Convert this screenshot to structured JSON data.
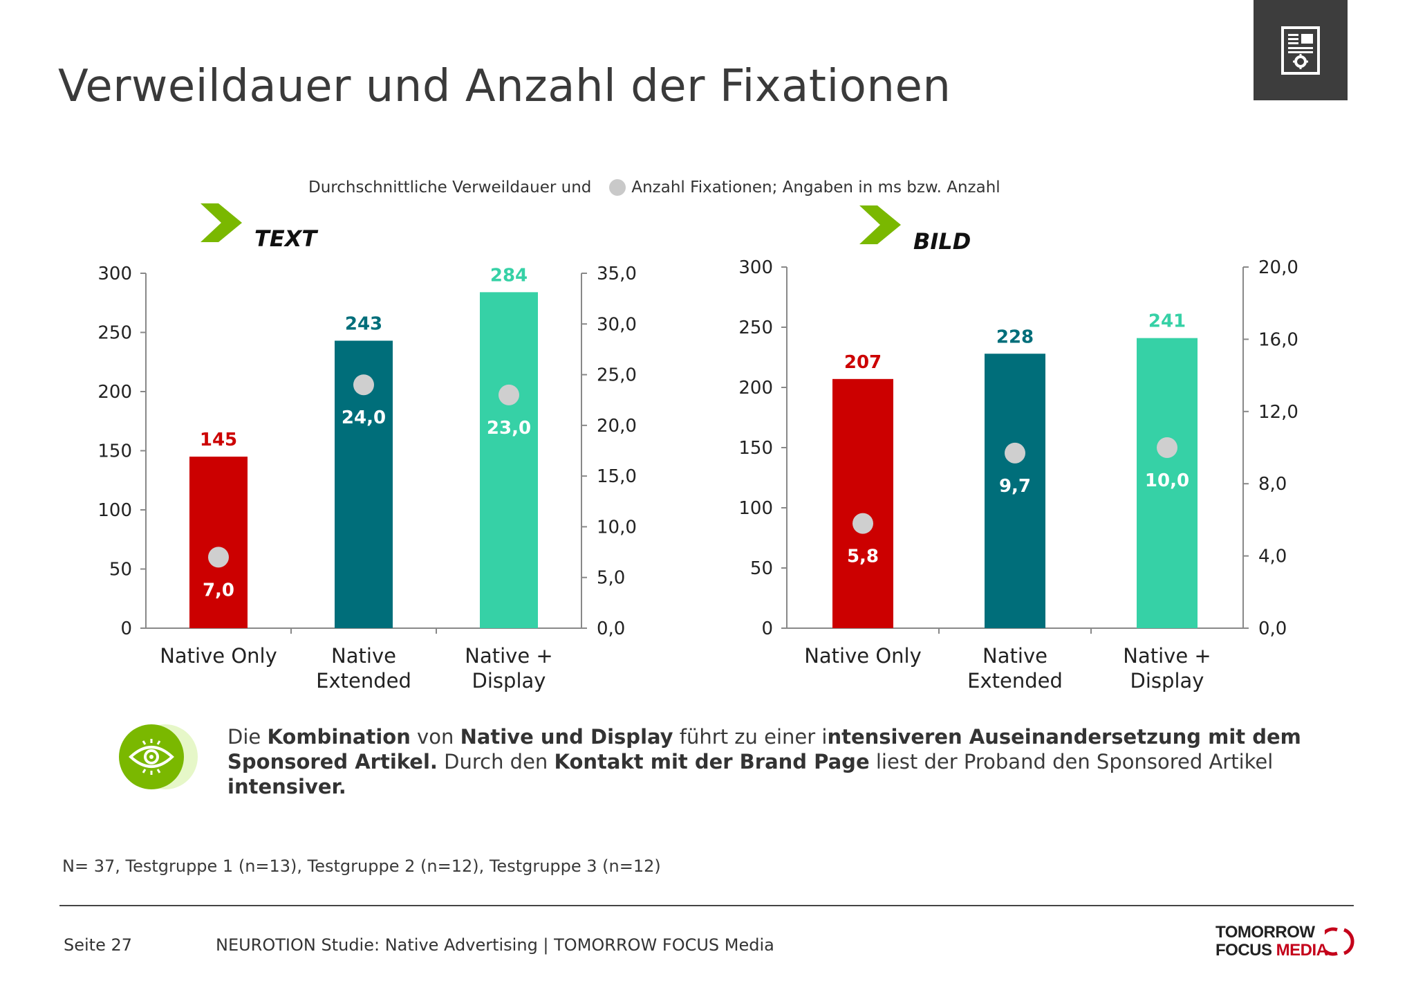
{
  "title": "Verweildauer und Anzahl der Fixationen",
  "subtitle": {
    "part1": "Durchschnittliche Verweildauer und",
    "part2": "Anzahl Fixationen; Angaben in ms bzw. Anzahl"
  },
  "callout": {
    "t1": "Die ",
    "b1": "Kombination",
    "t2": " von ",
    "b2": "Native und Display",
    "t3": " führt zu einer i",
    "b3": "ntensiveren Auseinandersetzung mit dem Sponsored Artikel.",
    "t4": " Durch den ",
    "b4": "Kontakt mit der Brand Page",
    "t5": " liest der Proband den Sponsored Artikel ",
    "b5": "intensiver."
  },
  "note": "N= 37, Testgruppe 1 (n=13), Testgruppe 2 (n=12), Testgruppe 3 (n=12)",
  "footer": {
    "page": "Seite 27",
    "text": "NEUROTION Studie: Native Advertising | TOMORROW FOCUS Media"
  },
  "logo": {
    "line1": "TOMORROW",
    "line2_a": "FOCUS",
    "line2_b": "MEDIA"
  },
  "icons": {
    "corner": "document-settings-icon",
    "callout": "eye-icon",
    "section": "chevron-right-icon"
  },
  "colors": {
    "native_only": "#cc0000",
    "native_extended": "#006e7a",
    "native_display": "#36d1a6",
    "dot": "#cfcfcf",
    "chevron": "#7ab800",
    "axis": "#888888"
  },
  "chart_data": [
    {
      "type": "bar",
      "label": "TEXT",
      "categories": [
        [
          "Native Only"
        ],
        [
          "Native",
          "Extended"
        ],
        [
          "Native +",
          "Display"
        ]
      ],
      "series": [
        {
          "values": [
            145,
            243,
            284
          ],
          "value_labels": [
            "145",
            "243",
            "284"
          ]
        },
        {
          "values": [
            7.0,
            24.0,
            23.0
          ],
          "value_labels": [
            "7,0",
            "24,0",
            "23,0"
          ]
        }
      ],
      "ylim": [
        0,
        300
      ],
      "yticks": [
        "0",
        "50",
        "100",
        "150",
        "200",
        "250",
        "300"
      ],
      "y2lim": [
        0,
        35
      ],
      "y2ticks": [
        "0,0",
        "5,0",
        "10,0",
        "15,0",
        "20,0",
        "25,0",
        "30,0",
        "35,0"
      ]
    },
    {
      "type": "bar",
      "label": "BILD",
      "categories": [
        [
          "Native Only"
        ],
        [
          "Native",
          "Extended"
        ],
        [
          "Native +",
          "Display"
        ]
      ],
      "series": [
        {
          "values": [
            207,
            228,
            241
          ],
          "value_labels": [
            "207",
            "228",
            "241"
          ]
        },
        {
          "values": [
            5.8,
            9.7,
            10.0
          ],
          "value_labels": [
            "5,8",
            "9,7",
            "10,0"
          ]
        }
      ],
      "ylim": [
        0,
        300
      ],
      "yticks": [
        "0",
        "50",
        "100",
        "150",
        "200",
        "250",
        "300"
      ],
      "y2lim": [
        0,
        20
      ],
      "y2ticks": [
        "0,0",
        "4,0",
        "8,0",
        "12,0",
        "16,0",
        "20,0"
      ]
    }
  ]
}
